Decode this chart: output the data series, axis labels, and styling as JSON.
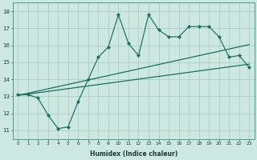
{
  "xlabel": "Humidex (Indice chaleur)",
  "ylabel": "",
  "xlim": [
    -0.5,
    23.5
  ],
  "ylim": [
    10.5,
    18.5
  ],
  "xticks": [
    0,
    1,
    2,
    3,
    4,
    5,
    6,
    7,
    8,
    9,
    10,
    11,
    12,
    13,
    14,
    15,
    16,
    17,
    18,
    19,
    20,
    21,
    22,
    23
  ],
  "yticks": [
    11,
    12,
    13,
    14,
    15,
    16,
    17,
    18
  ],
  "bg_color": "#cce8e0",
  "line_color": "#1a6e60",
  "grid_color": "#aad0c8",
  "line1_y": [
    13.1,
    13.1,
    12.9,
    11.9,
    11.1,
    11.2,
    12.7,
    14.0,
    15.3,
    15.9,
    17.8,
    16.1,
    15.4,
    17.8,
    16.9,
    16.5,
    16.5,
    17.1,
    17.1,
    17.1,
    16.5,
    15.3,
    15.4,
    14.7
  ],
  "line2_y": [
    13.05,
    13.18,
    13.31,
    13.44,
    13.57,
    13.7,
    13.83,
    13.96,
    14.09,
    14.22,
    14.35,
    14.48,
    14.61,
    14.74,
    14.87,
    15.0,
    15.13,
    15.26,
    15.39,
    15.52,
    15.65,
    15.78,
    15.91,
    16.04
  ],
  "line3_y": [
    13.05,
    13.13,
    13.21,
    13.29,
    13.37,
    13.45,
    13.53,
    13.61,
    13.69,
    13.77,
    13.85,
    13.93,
    14.01,
    14.09,
    14.17,
    14.25,
    14.33,
    14.41,
    14.49,
    14.57,
    14.65,
    14.73,
    14.81,
    14.89
  ]
}
